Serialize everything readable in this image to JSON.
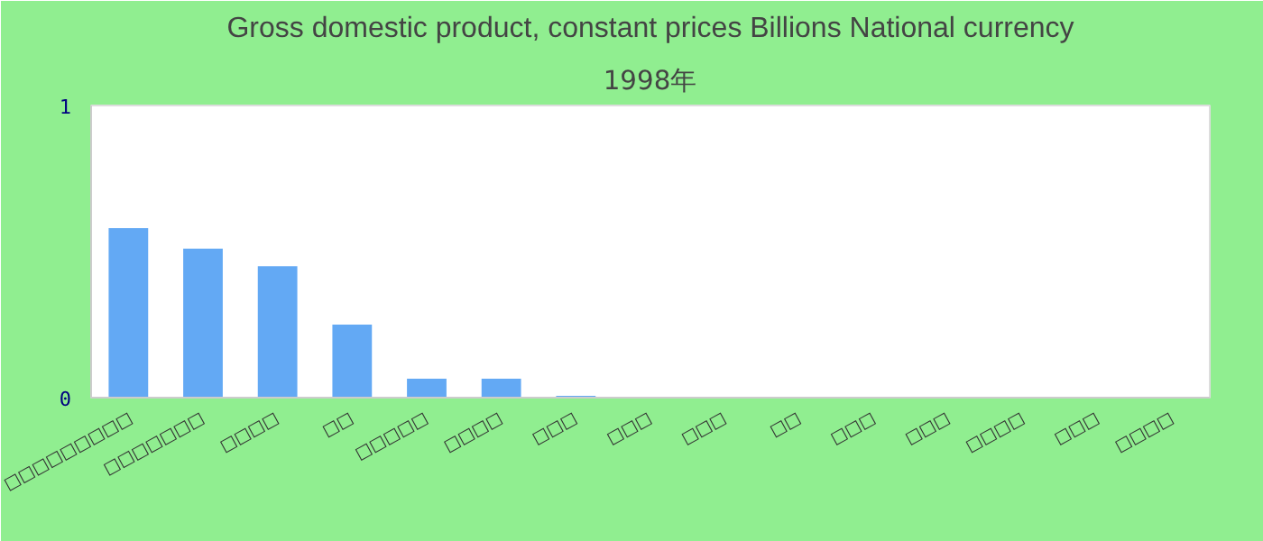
{
  "chart_data": {
    "type": "bar",
    "title": "Gross domestic product, constant prices Billions National currency",
    "subtitle": "1998年",
    "categories": [
      "□□□□□□□□□",
      "□□□□□□□",
      "□□□□",
      "□□",
      "□□□□□",
      "□□□□",
      "□□□",
      "□□□",
      "□□□",
      "□□",
      "□□□",
      "□□□",
      "□□□□",
      "□□□",
      "□□□□"
    ],
    "values": [
      0.58,
      0.51,
      0.45,
      0.25,
      0.065,
      0.065,
      0.006,
      0,
      0,
      0,
      0,
      0,
      0,
      0,
      0
    ],
    "color": "#63a9f4",
    "ylim": [
      0,
      1
    ],
    "yticks": [
      0,
      1
    ],
    "grid": false
  }
}
